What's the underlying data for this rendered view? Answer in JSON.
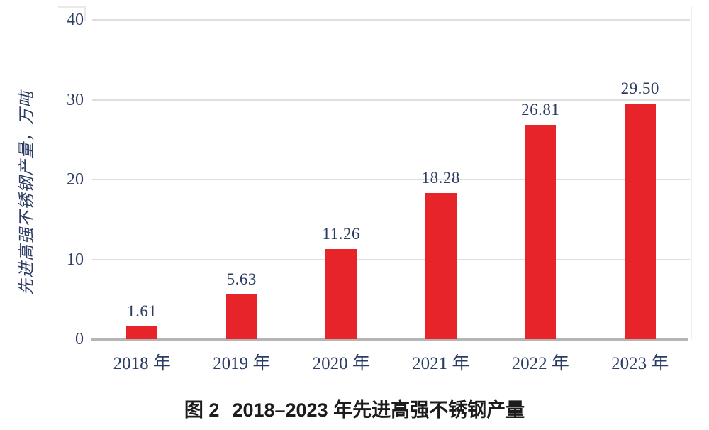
{
  "figure": {
    "caption_prefix": "图 2",
    "caption_text": "2018–2023 年先进高强不锈钢产量"
  },
  "chart_data": {
    "type": "bar",
    "title": "图 2 2018–2023 年先进高强不锈钢产量",
    "categories": [
      "2018 年",
      "2019 年",
      "2020 年",
      "2021 年",
      "2022 年",
      "2023 年"
    ],
    "values": [
      1.61,
      5.63,
      11.26,
      18.28,
      26.81,
      29.5
    ],
    "value_labels": [
      "1.61",
      "5.63",
      "11.26",
      "18.28",
      "26.81",
      "29.50"
    ],
    "xlabel": "",
    "ylabel": "先进高强不锈钢产量，万吨",
    "ylim": [
      0,
      40
    ],
    "yticks": [
      0,
      10,
      20,
      30,
      40
    ],
    "ytick_labels": [
      "0",
      "10",
      "20",
      "30",
      "40"
    ],
    "grid": "horizontal",
    "legend": "none",
    "colors": {
      "bar": "#e7242a",
      "label_text": "#2b3c63",
      "gridline": "#dedede",
      "axis_line": "#b5b5b5",
      "caption_text": "#1c1c1c",
      "background": "#ffffff"
    }
  }
}
